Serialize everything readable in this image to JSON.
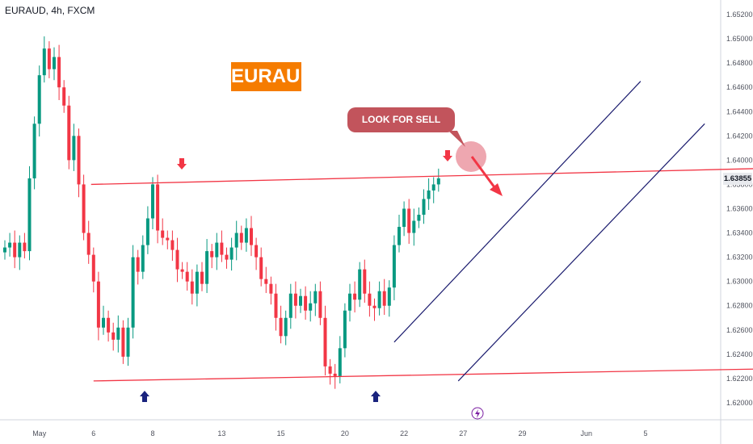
{
  "header": {
    "symbol": "EURAUD, 4h, FXCM"
  },
  "badge": {
    "label": "EURAUD",
    "color": "#f57c00"
  },
  "callout": {
    "label": "LOOK FOR SELL SETUPS",
    "color": "#c2545c"
  },
  "last_price": "1.63855",
  "colors": {
    "up": "#089981",
    "down": "#f23645",
    "channel": "#1a1b6e",
    "level": "#f23645",
    "arrow_blue": "#1a237e"
  },
  "chart_data": {
    "type": "candlestick",
    "title": "EURAUD, 4h, FXCM",
    "ylim": [
      1.6186,
      1.6532
    ],
    "y_ticks": [
      "1.65200",
      "1.65000",
      "1.64800",
      "1.64600",
      "1.64400",
      "1.64200",
      "1.64000",
      "1.63800",
      "1.63600",
      "1.63400",
      "1.63200",
      "1.63000",
      "1.62800",
      "1.62600",
      "1.62400",
      "1.62200",
      "1.62000"
    ],
    "x_ticks": [
      {
        "label": "May",
        "i": 7
      },
      {
        "label": "6",
        "i": 18
      },
      {
        "label": "8",
        "i": 30
      },
      {
        "label": "13",
        "i": 44
      },
      {
        "label": "15",
        "i": 56
      },
      {
        "label": "20",
        "i": 69
      },
      {
        "label": "22",
        "i": 81
      },
      {
        "label": "27",
        "i": 93
      },
      {
        "label": "29",
        "i": 105
      },
      {
        "label": "Jun",
        "i": 118
      },
      {
        "label": "5",
        "i": 130
      }
    ],
    "candles_close": [
      1.6328,
      1.6332,
      1.632,
      1.6332,
      1.6325,
      1.6385,
      1.643,
      1.647,
      1.6492,
      1.6475,
      1.6485,
      1.646,
      1.6445,
      1.64,
      1.642,
      1.638,
      1.634,
      1.6322,
      1.63,
      1.6262,
      1.627,
      1.6258,
      1.6252,
      1.6262,
      1.6238,
      1.6262,
      1.632,
      1.6308,
      1.633,
      1.6352,
      1.638,
      1.6342,
      1.6336,
      1.6334,
      1.6326,
      1.631,
      1.6308,
      1.63,
      1.629,
      1.6308,
      1.6298,
      1.6325,
      1.632,
      1.6332,
      1.6322,
      1.6318,
      1.6328,
      1.634,
      1.6332,
      1.6344,
      1.633,
      1.632,
      1.6302,
      1.6298,
      1.629,
      1.627,
      1.6255,
      1.627,
      1.629,
      1.628,
      1.6288,
      1.6276,
      1.6282,
      1.6292,
      1.627,
      1.623,
      1.6224,
      1.6222,
      1.6245,
      1.6276,
      1.629,
      1.6285,
      1.631,
      1.629,
      1.628,
      1.6278,
      1.6292,
      1.628,
      1.6295,
      1.633,
      1.6345,
      1.636,
      1.634,
      1.635,
      1.6355,
      1.6368,
      1.6375,
      1.638,
      1.6385
    ],
    "resistance_line": {
      "from": [
        1.638,
        17.5
      ],
      "to": [
        1.6393,
        152
      ]
    },
    "support_line": {
      "from": [
        1.6218,
        18
      ],
      "to": [
        1.6228,
        155
      ]
    },
    "channel": {
      "upper": {
        "from": [
          1.625,
          79
        ],
        "to": [
          1.6465,
          129
        ]
      },
      "lower": {
        "from": [
          1.6218,
          92
        ],
        "to": [
          1.643,
          142
        ]
      }
    },
    "annotations": [
      "EURAUD",
      "LOOK FOR SELL SETUPS"
    ]
  }
}
